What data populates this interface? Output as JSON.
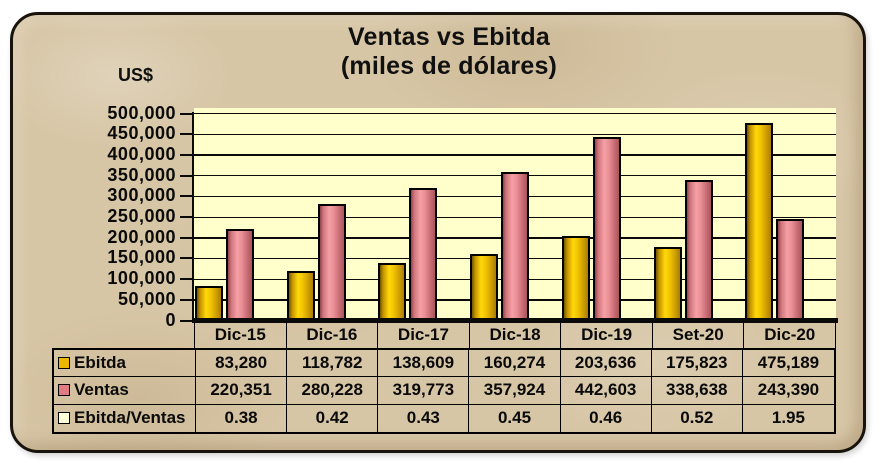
{
  "frame": {
    "background_color": "#d7c6a6",
    "border_color": "#18140c",
    "plot_background_color": "#ffffcc"
  },
  "chart": {
    "title_line1": "Ventas vs Ebitda",
    "title_line2": "(miles de dólares)",
    "y_unit_label": "US$"
  },
  "chart_data": {
    "type": "bar",
    "title": "Ventas vs Ebitda (miles de dólares)",
    "ylabel": "US$",
    "xlabel": "",
    "categories": [
      "Dic-15",
      "Dic-16",
      "Dic-17",
      "Dic-18",
      "Dic-19",
      "Set-20",
      "Dic-20"
    ],
    "series": [
      {
        "name": "Ebitda",
        "plotted": true,
        "values": [
          83280,
          118782,
          138609,
          160274,
          203636,
          175823,
          475189
        ],
        "labels": [
          "83,280",
          "118,782",
          "138,609",
          "160,274",
          "203,636",
          "175,823",
          "475,189"
        ],
        "legend_swatch": "#ecb800",
        "gradient": [
          "#6e5600",
          "#c49200",
          "#ffd90a",
          "#f1c400",
          "#cf9e00",
          "#a87e00"
        ]
      },
      {
        "name": "Ventas",
        "plotted": true,
        "values": [
          220351,
          280228,
          319773,
          357924,
          442603,
          338638,
          243390
        ],
        "labels": [
          "220,351",
          "280,228",
          "319,773",
          "357,924",
          "442,603",
          "338,638",
          "243,390"
        ],
        "legend_swatch": "#df7b81",
        "gradient": [
          "#8e444b",
          "#cf737b",
          "#f4a0a6",
          "#ea9096",
          "#c96d75",
          "#aa545c"
        ]
      },
      {
        "name": "Ebitda/Ventas",
        "plotted": false,
        "values": [
          0.38,
          0.42,
          0.43,
          0.45,
          0.46,
          0.52,
          1.95
        ],
        "labels": [
          "0.38",
          "0.42",
          "0.43",
          "0.45",
          "0.46",
          "0.52",
          "1.95"
        ],
        "legend_swatch": "#ffffd8",
        "gradient": []
      }
    ],
    "ylim": [
      0,
      500000
    ],
    "ytick_step": 50000,
    "ytick_labels": [
      "500,000",
      "450,000",
      "400,000",
      "350,000",
      "300,000",
      "250,000",
      "200,000",
      "150,000",
      "100,000",
      "50,000",
      "0"
    ],
    "grid": true,
    "legend_position": "attached-data-table"
  }
}
